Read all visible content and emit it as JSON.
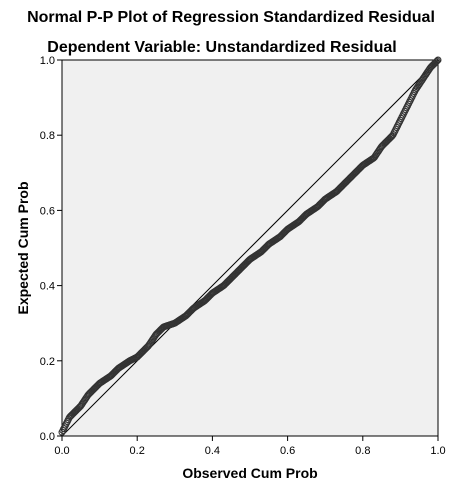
{
  "chart_data": {
    "type": "scatter",
    "title": "Normal P-P Plot of Regression Standardized Residual",
    "subtitle": "Dependent Variable: Unstandardized Residual",
    "xlabel": "Observed Cum Prob",
    "ylabel": "Expected Cum Prob",
    "xlim": [
      0,
      1
    ],
    "ylim": [
      0,
      1
    ],
    "x_ticks": [
      "0.0",
      "0.2",
      "0.4",
      "0.6",
      "0.8",
      "1.0"
    ],
    "y_ticks": [
      "0.0",
      "0.2",
      "0.4",
      "0.6",
      "0.8",
      "1.0"
    ],
    "grid": false,
    "reference_line": {
      "from": [
        0,
        0
      ],
      "to": [
        1,
        1
      ]
    },
    "colors": {
      "plot_background": "#f0f0f0",
      "marker": "#333333",
      "line": "#000000"
    },
    "curve": {
      "x": [
        0.0,
        0.01,
        0.02,
        0.03,
        0.05,
        0.07,
        0.1,
        0.13,
        0.15,
        0.18,
        0.2,
        0.23,
        0.25,
        0.27,
        0.3,
        0.33,
        0.35,
        0.38,
        0.4,
        0.43,
        0.45,
        0.48,
        0.5,
        0.53,
        0.55,
        0.58,
        0.6,
        0.63,
        0.65,
        0.68,
        0.7,
        0.73,
        0.75,
        0.78,
        0.8,
        0.83,
        0.85,
        0.88,
        0.9,
        0.92,
        0.94,
        0.96,
        0.98,
        0.99,
        1.0
      ],
      "y": [
        0.01,
        0.03,
        0.05,
        0.06,
        0.08,
        0.11,
        0.14,
        0.16,
        0.18,
        0.2,
        0.21,
        0.24,
        0.27,
        0.29,
        0.3,
        0.32,
        0.34,
        0.36,
        0.38,
        0.4,
        0.42,
        0.45,
        0.47,
        0.49,
        0.51,
        0.53,
        0.55,
        0.57,
        0.59,
        0.61,
        0.63,
        0.65,
        0.67,
        0.7,
        0.72,
        0.74,
        0.77,
        0.8,
        0.84,
        0.88,
        0.92,
        0.95,
        0.98,
        0.99,
        1.0
      ]
    },
    "n_points": 420
  }
}
